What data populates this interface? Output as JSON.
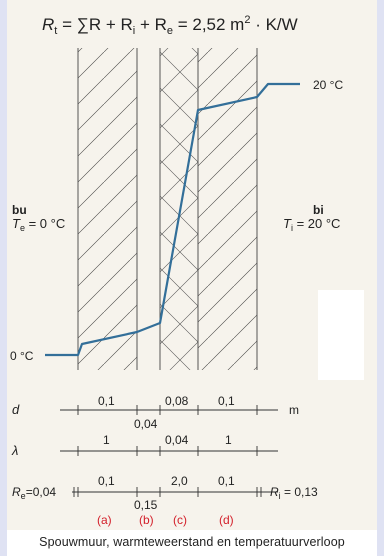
{
  "formula": {
    "lhs": "R",
    "lhs_sub": "t",
    "eq1": " = ∑R + R",
    "sub_i": "i",
    "plus": " + R",
    "sub_e": "e",
    "value": " =  2,52 m",
    "sup": "2",
    "unit": " · K/W"
  },
  "outside": {
    "label": "bu",
    "temp_prefix": "T",
    "temp_sub": "e",
    "temp_value": " = 0 °C",
    "line_temp": "0 °C"
  },
  "inside": {
    "label": "bi",
    "temp_prefix": "T",
    "temp_sub": "i",
    "temp_value": " = 20 °C",
    "line_temp": "20 °C"
  },
  "rows": {
    "d_symbol": "d",
    "d_unit": "m",
    "d_values": [
      "0,1",
      "0,04",
      "0,08",
      "0,1"
    ],
    "lambda_symbol": "λ",
    "lambda_values": [
      "1",
      "0,04",
      "1"
    ],
    "r_left": "R",
    "r_left_sub": "e",
    "r_left_value": "=0,04",
    "r_values": [
      "0,1",
      "0,15",
      "2,0",
      "0,1"
    ],
    "r_right": "R",
    "r_right_sub": "i",
    "r_right_value": " = 0,13"
  },
  "layers": [
    "(a)",
    "(b)",
    "(c)",
    "(d)"
  ],
  "caption": "Spouwmuur, warmteweerstand en temperatuurverloop",
  "temperature_profile": {
    "units": "°C",
    "points": [
      0.0,
      1.0,
      2.3,
      17.5,
      19.3,
      20.0
    ]
  },
  "colors": {
    "line": "#336f99",
    "layer_labels": "#d31f2a",
    "paper": "#f6f3ec",
    "background": "#dfe2f3"
  }
}
